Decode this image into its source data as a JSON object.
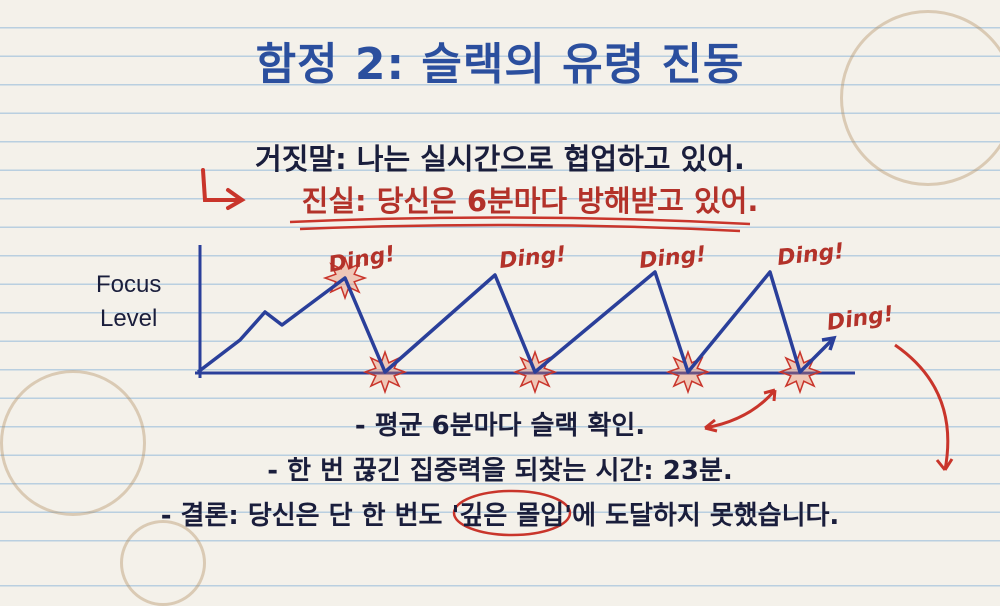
{
  "title": "함정 2: 슬랙의 유령 진동",
  "lie": "거짓말: 나는 실시간으로 협업하고 있어.",
  "truth": "진실: 당신은 6분마다 방해받고 있어.",
  "chart": {
    "y_label_line1": "Focus",
    "y_label_line2": "Level",
    "ding_labels": [
      "Ding!",
      "Ding!",
      "Ding!",
      "Ding!",
      "Ding!"
    ]
  },
  "bullets": [
    "- 평균 6분마다 슬랙 확인.",
    "- 한 번 끊긴 집중력을 되찾는 시간: 23분.",
    "- 결론: 당신은 단 한 번도 '깊은 몰입'에 도달하지 못했습니다."
  ],
  "colors": {
    "title": "#2b4f9e",
    "text": "#1a1e3c",
    "accent_red": "#b3322a",
    "line_blue": "#2a3f9a"
  }
}
